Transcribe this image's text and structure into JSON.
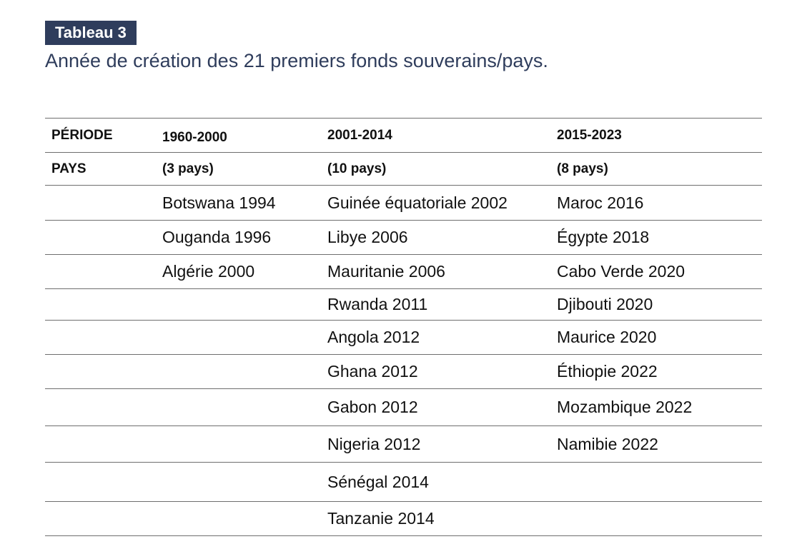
{
  "table_label": "Tableau 3",
  "title": "Année de création des 21 premiers fonds souverains/pays.",
  "header": {
    "period": [
      "PÉRIODE",
      "1960-2000",
      "2001-2014",
      "2015-2023"
    ],
    "countries": [
      "PAYS",
      "(3 pays)",
      "(10 pays)",
      "(8 pays)"
    ]
  },
  "rows": [
    [
      "",
      "Botswana 1994",
      "Guinée équatoriale 2002",
      "Maroc 2016"
    ],
    [
      "",
      "Ouganda 1996",
      "Libye 2006",
      "Égypte 2018"
    ],
    [
      "",
      "Algérie 2000",
      "Mauritanie 2006",
      "Cabo Verde 2020"
    ],
    [
      "",
      "",
      "Rwanda 2011",
      "Djibouti 2020"
    ],
    [
      "",
      "",
      "Angola 2012",
      "Maurice 2020"
    ],
    [
      "",
      "",
      "Ghana 2012",
      "Éthiopie 2022"
    ],
    [
      "",
      "",
      "Gabon 2012",
      "Mozambique 2022"
    ],
    [
      "",
      "",
      "Nigeria 2012",
      "Namibie 2022"
    ],
    [
      "",
      "",
      "Sénégal 2014",
      ""
    ],
    [
      "",
      "",
      "Tanzanie 2014",
      ""
    ]
  ]
}
